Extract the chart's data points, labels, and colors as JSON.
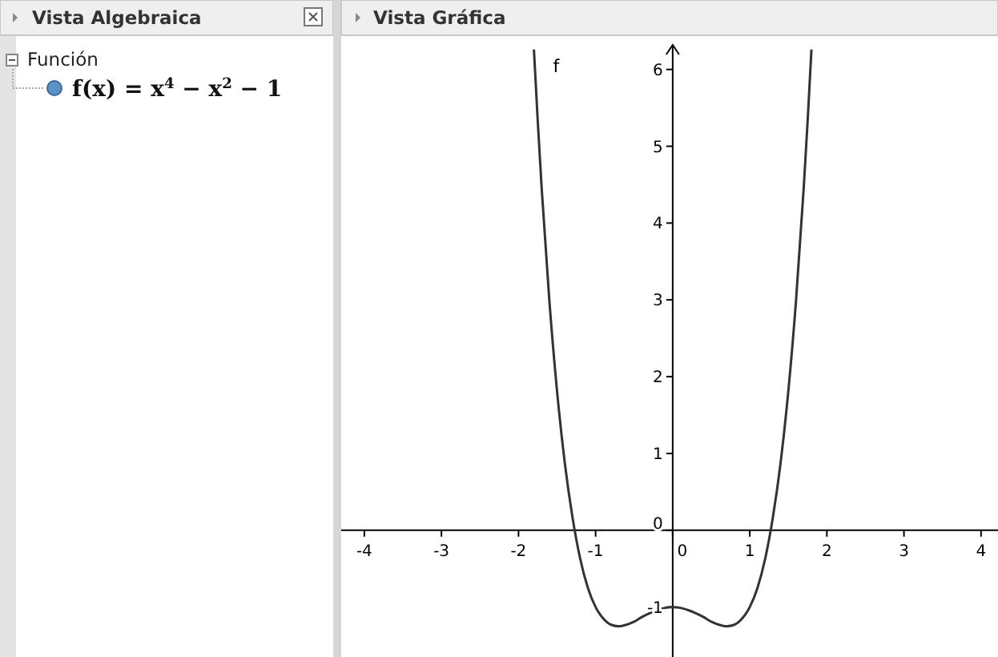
{
  "chart_data": {
    "type": "line",
    "title": "Vista Gráfica",
    "annotations": [
      "Vista Algebraica",
      "Función",
      "f(x) = x$^{4}$ − x$^{2}$ − 1"
    ],
    "x": [
      -1.8,
      -1.75,
      -1.7,
      -1.6,
      -1.5,
      -1.4,
      -1.3,
      -1.2,
      -1.1,
      -1.0,
      -0.9,
      -0.8,
      -0.7,
      -0.6,
      -0.5,
      -0.4,
      -0.3,
      -0.2,
      -0.1,
      0,
      0.1,
      0.2,
      0.3,
      0.4,
      0.5,
      0.6,
      0.7,
      0.8,
      0.9,
      1.0,
      1.1,
      1.2,
      1.3,
      1.4,
      1.5,
      1.6,
      1.7,
      1.75,
      1.8
    ],
    "series": [
      {
        "name": "f",
        "color": "#333333",
        "values": [
          6.26,
          5.32,
          4.46,
          2.99,
          1.81,
          0.88,
          0.17,
          -0.37,
          -0.75,
          -1,
          -1.15,
          -1.23,
          -1.25,
          -1.23,
          -1.19,
          -1.13,
          -1.08,
          -1.04,
          -1.01,
          -1,
          -1.01,
          -1.04,
          -1.08,
          -1.13,
          -1.19,
          -1.23,
          -1.25,
          -1.23,
          -1.15,
          -1,
          -0.75,
          -0.37,
          0.17,
          0.88,
          1.81,
          2.99,
          4.46,
          5.32,
          6.26
        ]
      }
    ],
    "xlim": [
      -4.3,
      4.22
    ],
    "ylim": [
      -1.65,
      6.32
    ],
    "xticks": [
      -4,
      -3,
      -2,
      -1,
      0,
      1,
      2,
      3,
      4
    ],
    "yticks": [
      -1,
      0,
      1,
      2,
      3,
      4,
      5,
      6
    ],
    "grid": false,
    "marker": "none",
    "line_style": "solid"
  }
}
